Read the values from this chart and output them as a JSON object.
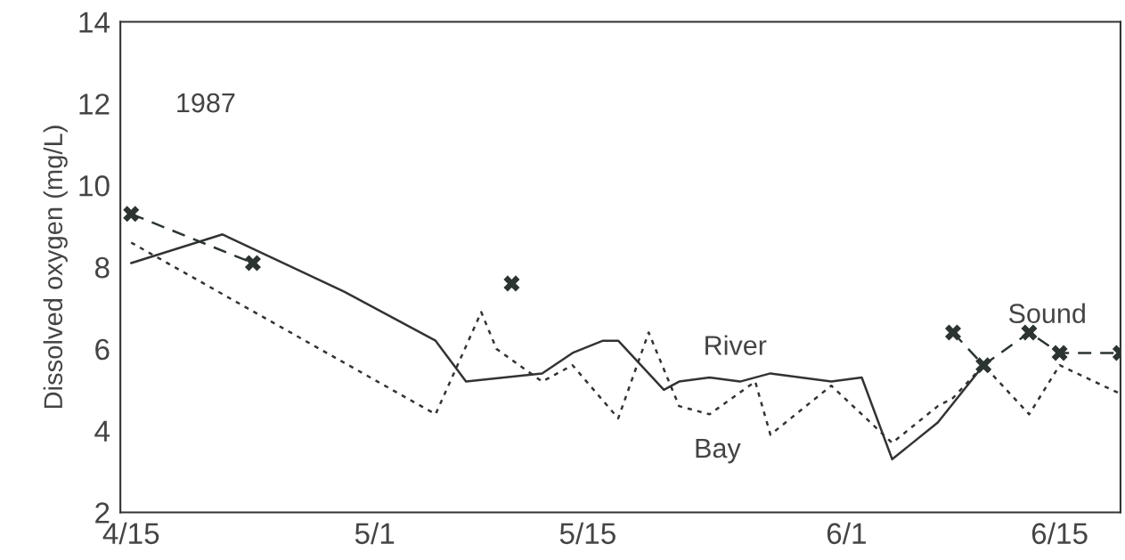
{
  "chart_data": {
    "type": "line",
    "ylabel": "Dissolved oxygen (mg/L)",
    "annotations": [
      "1987"
    ],
    "xlim": [
      "1987-04-14T07:00",
      "1987-06-19"
    ],
    "xticks": [
      {
        "value": "1987-04-15",
        "label": "4/15"
      },
      {
        "value": "1987-05-01",
        "label": "5/1"
      },
      {
        "value": "1987-05-15",
        "label": "5/15"
      },
      {
        "value": "1987-06-01",
        "label": "6/1"
      },
      {
        "value": "1987-06-15",
        "label": "6/15"
      }
    ],
    "ylim": [
      2,
      14
    ],
    "yticks": [
      2,
      4,
      6,
      8,
      10,
      12,
      14
    ],
    "grid": false,
    "legend": false,
    "series": [
      {
        "name": "River",
        "color": "#333333",
        "line_style": "solid",
        "marker": "none",
        "x": [
          "1987-04-15",
          "1987-04-21",
          "1987-04-29",
          "1987-05-05",
          "1987-05-07",
          "1987-05-12",
          "1987-05-14",
          "1987-05-16",
          "1987-05-17",
          "1987-05-20",
          "1987-05-21",
          "1987-05-23",
          "1987-05-25",
          "1987-05-27",
          "1987-05-31",
          "1987-06-02",
          "1987-06-04",
          "1987-06-07",
          "1987-06-10"
        ],
        "values": [
          8.1,
          8.8,
          7.4,
          6.2,
          5.2,
          5.4,
          5.9,
          6.2,
          6.2,
          5.0,
          5.2,
          5.3,
          5.2,
          5.4,
          5.2,
          5.3,
          3.3,
          4.2,
          5.6
        ]
      },
      {
        "name": "Bay",
        "color": "#333333",
        "line_style": "dotted",
        "marker": "none",
        "x": [
          "1987-04-15",
          "1987-05-05",
          "1987-05-08",
          "1987-05-09",
          "1987-05-12",
          "1987-05-14",
          "1987-05-17",
          "1987-05-19",
          "1987-05-21",
          "1987-05-23",
          "1987-05-26",
          "1987-05-27",
          "1987-05-30",
          "1987-05-31",
          "1987-06-04",
          "1987-06-07",
          "1987-06-08",
          "1987-06-10",
          "1987-06-13",
          "1987-06-15",
          "1987-06-19"
        ],
        "values": [
          8.6,
          4.4,
          6.9,
          6.0,
          5.2,
          5.6,
          4.3,
          6.4,
          4.6,
          4.4,
          5.2,
          3.9,
          4.8,
          5.1,
          3.7,
          4.6,
          4.8,
          5.6,
          4.4,
          5.6,
          4.9
        ]
      },
      {
        "name": "Sound",
        "color": "#2b3430",
        "line_style": "dashed",
        "marker": "cross",
        "x": [
          "1987-04-15",
          "1987-04-23",
          "1987-05-01",
          "1987-05-10",
          "1987-05-25",
          "1987-06-08",
          "1987-06-10",
          "1987-06-13",
          "1987-06-15",
          "1987-06-19"
        ],
        "values": [
          9.3,
          8.1,
          null,
          7.6,
          null,
          6.4,
          5.6,
          6.4,
          5.9,
          5.9
        ]
      }
    ]
  }
}
